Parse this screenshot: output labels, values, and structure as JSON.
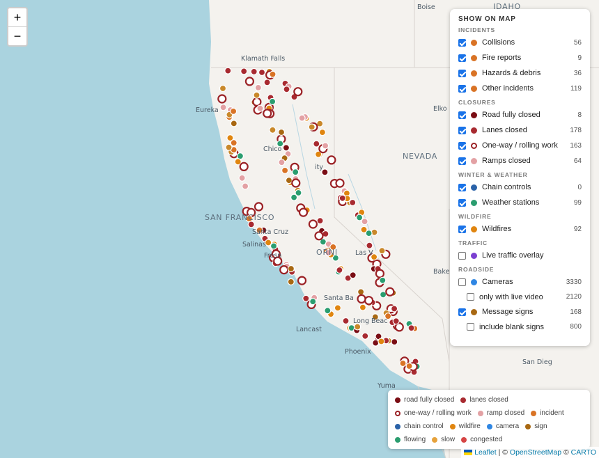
{
  "map": {
    "labels": [
      {
        "name": "label-idaho",
        "text": "IDAHO",
        "kind": "state"
      },
      {
        "name": "label-boise",
        "text": "Boise",
        "kind": "city"
      },
      {
        "name": "label-klamath-falls",
        "text": "Klamath Falls",
        "kind": "city"
      },
      {
        "name": "label-eureka",
        "text": "Eureka",
        "kind": "city"
      },
      {
        "name": "label-elko",
        "text": "Elko",
        "kind": "city"
      },
      {
        "name": "label-chico",
        "text": "Chico",
        "kind": "city"
      },
      {
        "name": "label-nevada",
        "text": "NEVADA",
        "kind": "state"
      },
      {
        "name": "label-redding-partial",
        "text": "ity",
        "kind": "city"
      },
      {
        "name": "label-san-francisco",
        "text": "SAN FRANCISCO",
        "kind": "state"
      },
      {
        "name": "label-santa-cruz",
        "text": "Santa Cruz",
        "kind": "city"
      },
      {
        "name": "label-salinas",
        "text": "Salinas",
        "kind": "city"
      },
      {
        "name": "label-fresno",
        "text": "Fresn",
        "kind": "city"
      },
      {
        "name": "label-california",
        "text": "ORNI",
        "kind": "state"
      },
      {
        "name": "label-las-vegas",
        "text": "Las V",
        "kind": "city"
      },
      {
        "name": "label-bakersfield",
        "text": "Bakersfiel",
        "kind": "city"
      },
      {
        "name": "label-santa-barbara",
        "text": "Santa Ba",
        "kind": "city"
      },
      {
        "name": "label-lancaster",
        "text": "Lancast",
        "kind": "city"
      },
      {
        "name": "label-long-beach",
        "text": "Long Beac",
        "kind": "city"
      },
      {
        "name": "label-phoenix",
        "text": "Phoenix",
        "kind": "city"
      },
      {
        "name": "label-san-diego",
        "text": "San Dieg",
        "kind": "city"
      },
      {
        "name": "label-yuma",
        "text": "Yuma",
        "kind": "city"
      }
    ]
  },
  "zoom": {
    "in": "+",
    "out": "−"
  },
  "panel": {
    "title": "SHOW ON MAP",
    "sections": [
      {
        "heading": "INCIDENTS",
        "items": [
          {
            "label": "Collisions",
            "count": "56",
            "checked": true,
            "color": "#d97325"
          },
          {
            "label": "Fire reports",
            "count": "9",
            "checked": true,
            "color": "#d97325"
          },
          {
            "label": "Hazards & debris",
            "count": "36",
            "checked": true,
            "color": "#d97325"
          },
          {
            "label": "Other incidents",
            "count": "119",
            "checked": true,
            "color": "#d97325"
          }
        ]
      },
      {
        "heading": "CLOSURES",
        "items": [
          {
            "label": "Road fully closed",
            "count": "8",
            "checked": true,
            "color": "#7a0d14"
          },
          {
            "label": "Lanes closed",
            "count": "178",
            "checked": true,
            "color": "#a82a30"
          },
          {
            "label": "One-way / rolling work",
            "count": "163",
            "checked": true,
            "color": "#9b2226",
            "ring": true
          },
          {
            "label": "Ramps closed",
            "count": "64",
            "checked": true,
            "color": "#e3a1a4"
          }
        ]
      },
      {
        "heading": "WINTER & WEATHER",
        "items": [
          {
            "label": "Chain controls",
            "count": "0",
            "checked": true,
            "color": "#2a62a8"
          },
          {
            "label": "Weather stations",
            "count": "99",
            "checked": true,
            "color": "#2a9d6f"
          }
        ]
      },
      {
        "heading": "WILDFIRE",
        "items": [
          {
            "label": "Wildfires",
            "count": "92",
            "checked": true,
            "color": "#e0850f"
          }
        ]
      },
      {
        "heading": "TRAFFIC",
        "items": [
          {
            "label": "Live traffic overlay",
            "count": "",
            "checked": false,
            "color": "#7b3fd1"
          }
        ]
      },
      {
        "heading": "ROADSIDE",
        "items": [
          {
            "label": "Cameras",
            "count": "3330",
            "checked": false,
            "color": "#2f86e3"
          },
          {
            "label": "only with live video",
            "count": "2120",
            "checked": false,
            "sub": true
          },
          {
            "label": "Message signs",
            "count": "168",
            "checked": true,
            "color": "#a86812"
          },
          {
            "label": "include blank signs",
            "count": "800",
            "checked": false,
            "sub": true
          }
        ]
      }
    ]
  },
  "legend": {
    "rows": [
      [
        {
          "label": "road fully closed",
          "color": "#7a0d14"
        },
        {
          "label": "lanes closed",
          "color": "#a82a30"
        }
      ],
      [
        {
          "label": "one-way / rolling work",
          "color": "#9b2226",
          "ring": true
        },
        {
          "label": "ramp closed",
          "color": "#e3a1a4"
        },
        {
          "label": "incident",
          "color": "#d97325"
        }
      ],
      [
        {
          "label": "chain control",
          "color": "#2a62a8"
        },
        {
          "label": "wildfire",
          "color": "#e0850f"
        },
        {
          "label": "camera",
          "color": "#2f86e3"
        },
        {
          "label": "sign",
          "color": "#a86812"
        }
      ],
      [
        {
          "label": "flowing",
          "color": "#2a9d6f"
        },
        {
          "label": "slow",
          "color": "#e6a23c"
        },
        {
          "label": "congested",
          "color": "#d64545"
        }
      ]
    ]
  },
  "attribution": {
    "leaflet": "Leaflet",
    "sep1": " | © ",
    "osm": "OpenStreetMap",
    "sep2": " © ",
    "carto": "CARTO"
  }
}
